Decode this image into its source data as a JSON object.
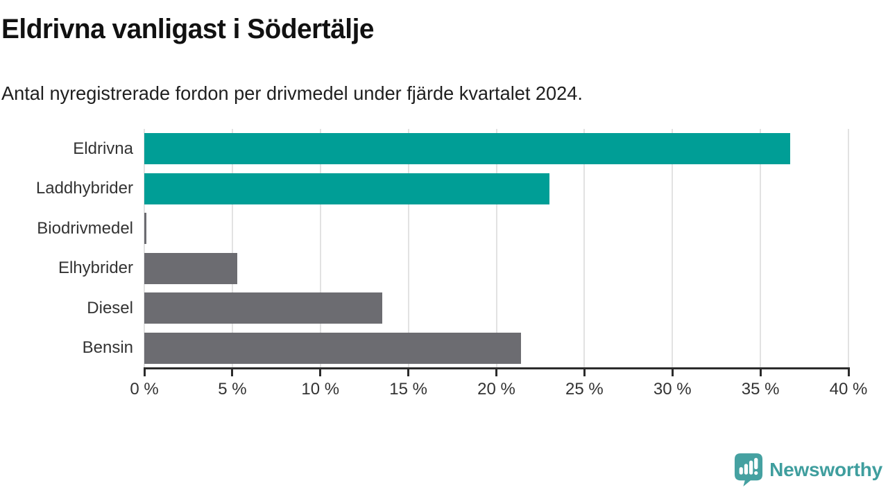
{
  "header": {
    "title": "Eldrivna vanligast i Södertälje",
    "subtitle": "Antal nyregistrerade fordon per drivmedel under fjärde kvartalet 2024."
  },
  "chart_data": {
    "type": "bar",
    "orientation": "horizontal",
    "title": "Eldrivna vanligast i Södertälje",
    "subtitle": "Antal nyregistrerade fordon per drivmedel under fjärde kvartalet 2024.",
    "categories": [
      "Eldrivna",
      "Laddhybrider",
      "Biodrivmedel",
      "Elhybrider",
      "Diesel",
      "Bensin"
    ],
    "values": [
      36.7,
      23.0,
      0.1,
      5.3,
      13.5,
      21.4
    ],
    "unit": "%",
    "xlim": [
      0,
      40
    ],
    "x_ticks": [
      0,
      5,
      10,
      15,
      20,
      25,
      30,
      35,
      40
    ],
    "x_tick_format": "{v} %",
    "grid": true,
    "legend": "none",
    "highlight_color": "#009e96",
    "default_color": "#6c6c71",
    "bar_colors": [
      "#009e96",
      "#009e96",
      "#6c6c71",
      "#6c6c71",
      "#6c6c71",
      "#6c6c71"
    ]
  },
  "colors": {
    "accent_teal": "#009e96",
    "neutral_gray": "#6c6c71",
    "axis": "#2b2b2b",
    "gridline": "#e2e2e2",
    "logo_teal": "#3f9e9e"
  },
  "footer": {
    "brand": "Newsworthy",
    "logo_icon": "newsworthy-speech-bubble-barchart-icon"
  }
}
